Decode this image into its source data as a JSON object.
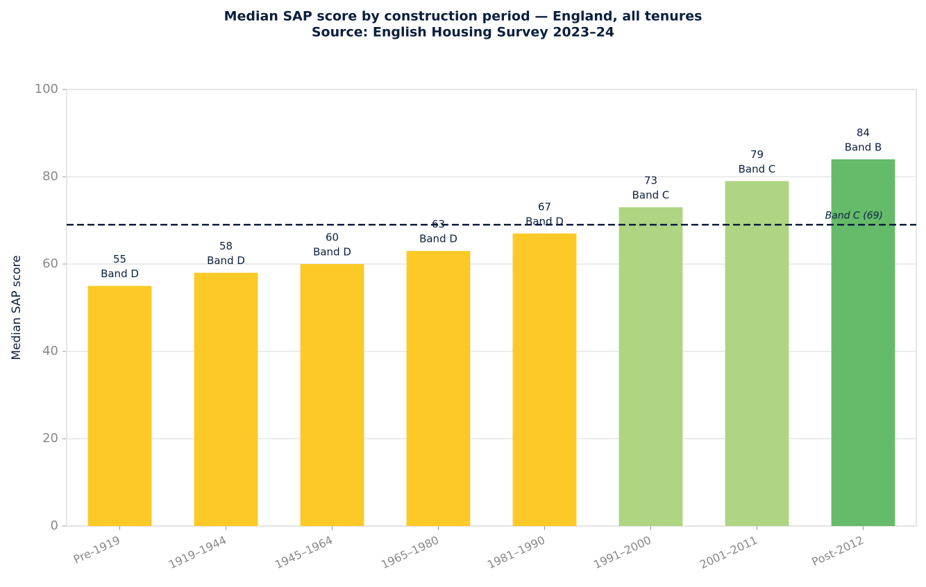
{
  "chart_data": {
    "type": "bar",
    "title": "Median SAP score by construction period — England, all tenures",
    "subtitle": "Source: English Housing Survey 2023–24",
    "y_label": "Median SAP score",
    "categories": [
      "Pre-1919",
      "1919–1944",
      "1945–1964",
      "1965–1980",
      "1981–1990",
      "1991–2000",
      "2001–2011",
      "Post-2012"
    ],
    "values": [
      55,
      58,
      60,
      63,
      67,
      73,
      79,
      84
    ],
    "bands": [
      "Band D",
      "Band D",
      "Band D",
      "Band D",
      "Band D",
      "Band C",
      "Band C",
      "Band B"
    ],
    "colors": [
      "#fdc926",
      "#fdc926",
      "#fdc926",
      "#fdc926",
      "#fdc926",
      "#aed581",
      "#aed581",
      "#66bb6a"
    ],
    "reference_line": {
      "value": 69,
      "label": "Band C (69)",
      "color": "#0b1f3f"
    },
    "ylim": [
      0,
      100
    ],
    "yticks": [
      0,
      20,
      40,
      60,
      80,
      100
    ],
    "grid": true
  }
}
